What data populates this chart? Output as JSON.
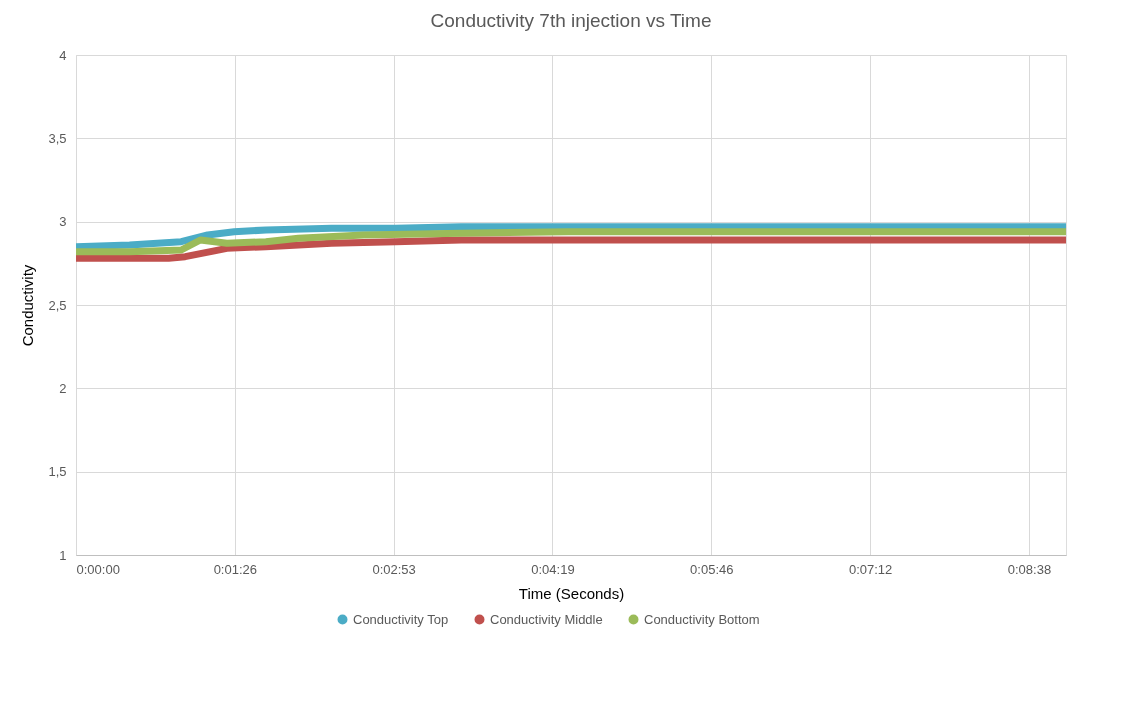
{
  "chart_data": {
    "type": "line",
    "title": "Conductivity  7th injection vs Time",
    "xlabel": "Time (Seconds)",
    "ylabel": "Conductivity",
    "xlim": [
      0,
      0.1496
    ],
    "xticks": [
      {
        "value": 0,
        "label": "0:00:00"
      },
      {
        "value": 0.024,
        "label": "0:01:26"
      },
      {
        "value": 0.048,
        "label": "0:02:53"
      },
      {
        "value": 0.072,
        "label": "0:04:19"
      },
      {
        "value": 0.096,
        "label": "0:05:46"
      },
      {
        "value": 0.12,
        "label": "0:07:12"
      },
      {
        "value": 0.144,
        "label": "0:08:38"
      }
    ],
    "ylim": [
      1,
      4
    ],
    "yticks": [
      1,
      {
        "value": 1.5,
        "label": "1,5"
      },
      2,
      {
        "value": 2.5,
        "label": "2,5"
      },
      3,
      {
        "value": 3.5,
        "label": "3,5"
      },
      4
    ],
    "grid": true,
    "legend": "bottom",
    "marker": "none",
    "line_style": "solid",
    "series": [
      {
        "name": "Conductivity Top",
        "color": "#4bacc6",
        "x": [
          0,
          0.0081,
          0.0159,
          0.0199,
          0.0239,
          0.0287,
          0.0386,
          0.0483,
          0.0582,
          0.0744,
          0.0964,
          0.1185,
          0.1332,
          0.1496
        ],
        "values": [
          2.85,
          2.86,
          2.88,
          2.92,
          2.94,
          2.95,
          2.96,
          2.96,
          2.97,
          2.97,
          2.97,
          2.97,
          2.97,
          2.97
        ]
      },
      {
        "name": "Conductivity Middle",
        "color": "#c0504d",
        "x": [
          0,
          0.0081,
          0.014,
          0.0165,
          0.0228,
          0.0287,
          0.0386,
          0.0483,
          0.0582,
          0.0744,
          0.0964,
          0.1185,
          0.1332,
          0.1496
        ],
        "values": [
          2.78,
          2.78,
          2.78,
          2.79,
          2.84,
          2.85,
          2.87,
          2.88,
          2.89,
          2.89,
          2.89,
          2.89,
          2.89,
          2.89
        ]
      },
      {
        "name": "Conductivity Bottom",
        "color": "#9bbb59",
        "x": [
          0,
          0.0081,
          0.0159,
          0.0188,
          0.0228,
          0.0287,
          0.0336,
          0.0434,
          0.0582,
          0.0744,
          0.0964,
          0.1185,
          0.1332,
          0.1496
        ],
        "values": [
          2.82,
          2.82,
          2.83,
          2.89,
          2.87,
          2.88,
          2.9,
          2.92,
          2.93,
          2.94,
          2.94,
          2.94,
          2.94,
          2.94
        ]
      }
    ]
  }
}
